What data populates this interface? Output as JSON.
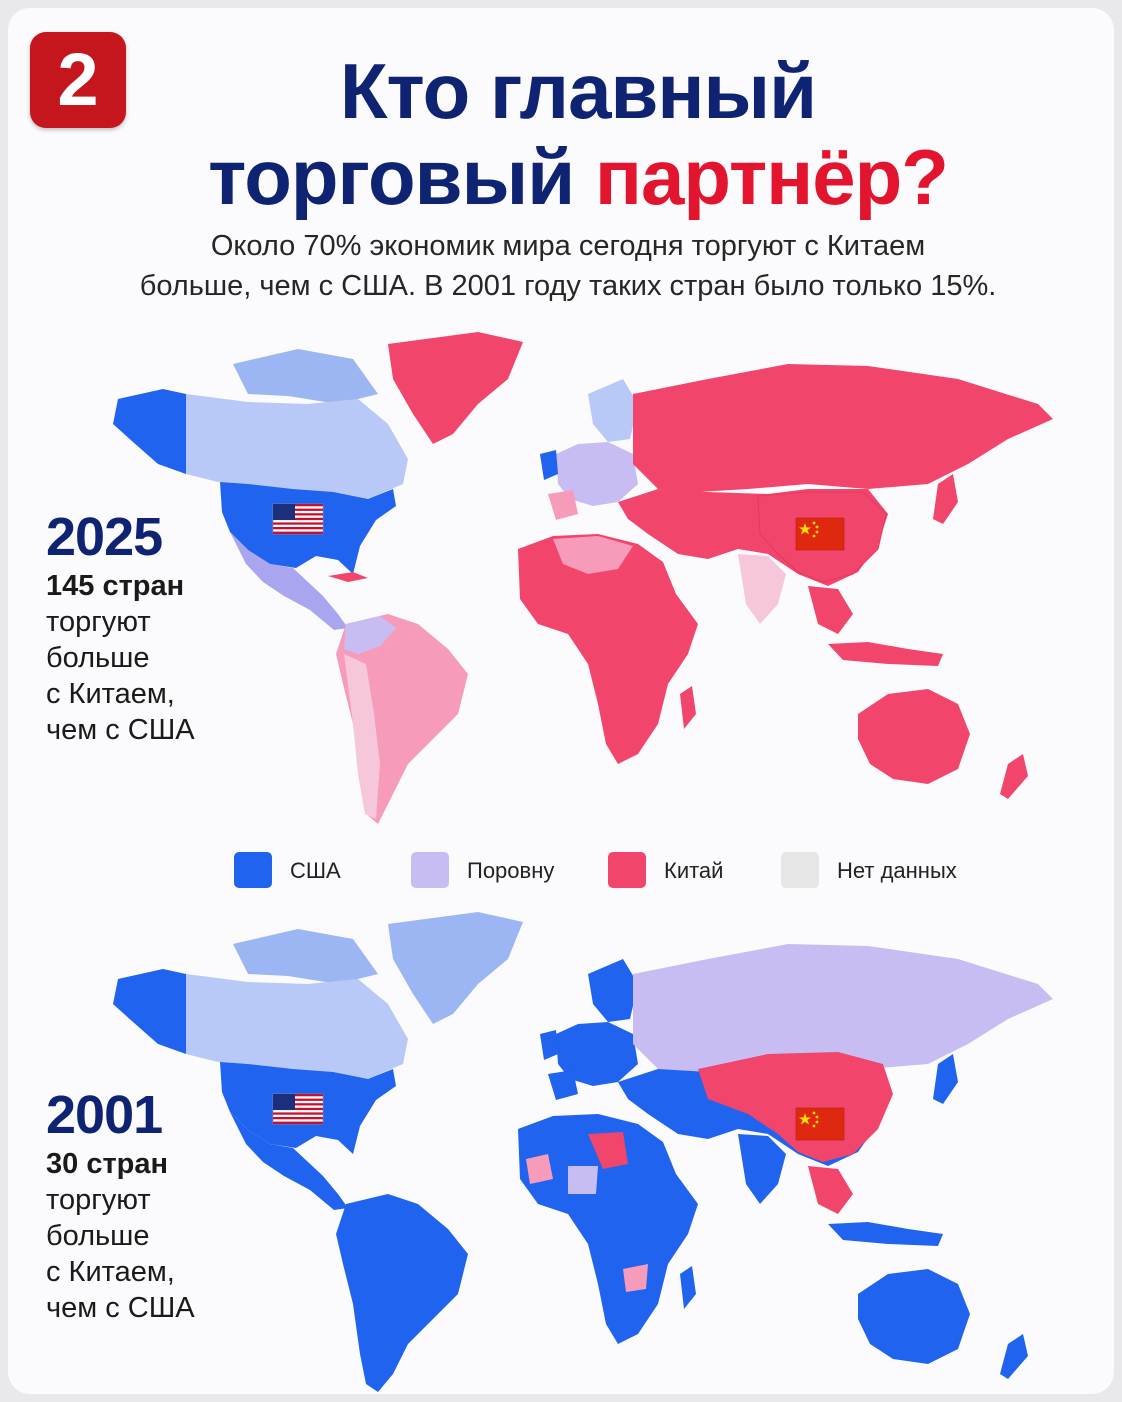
{
  "badge": "2",
  "title": {
    "line1": "Кто главный",
    "line2_a": "торговый",
    "line2_b": "партнёр?"
  },
  "subtitle": {
    "line1": "Около 70% экономик мира сегодня торгуют с Китаем",
    "line2": "больше, чем с США. В 2001 году таких стран было только 15%."
  },
  "panels": [
    {
      "year": "2025",
      "lines": [
        "145 стран",
        "торгуют",
        "больше",
        "с Китаем,",
        "чем с США"
      ]
    },
    {
      "year": "2001",
      "lines": [
        "30 стран",
        "торгуют",
        "больше",
        "с Китаем,",
        "чем с США"
      ]
    }
  ],
  "legend": [
    {
      "label": "США",
      "color": "#1f63ee"
    },
    {
      "label": "Поровну",
      "color": "#c8bdf3"
    },
    {
      "label": "Китай",
      "color": "#f2456b"
    },
    {
      "label": "Нет данных",
      "color": "#e6e6e6"
    }
  ],
  "colors": {
    "us_strong": "#1f63ee",
    "us_light": "#9cb6f4",
    "equal": "#c8bdf3",
    "china": "#f2456b",
    "china_light": "#f79bbb",
    "no_data": "#e6e6e6",
    "title_navy": "#0e2473",
    "title_red": "#e3142d",
    "badge_red": "#c4161c"
  },
  "map_icons": [
    "us-flag-icon",
    "china-flag-icon"
  ]
}
